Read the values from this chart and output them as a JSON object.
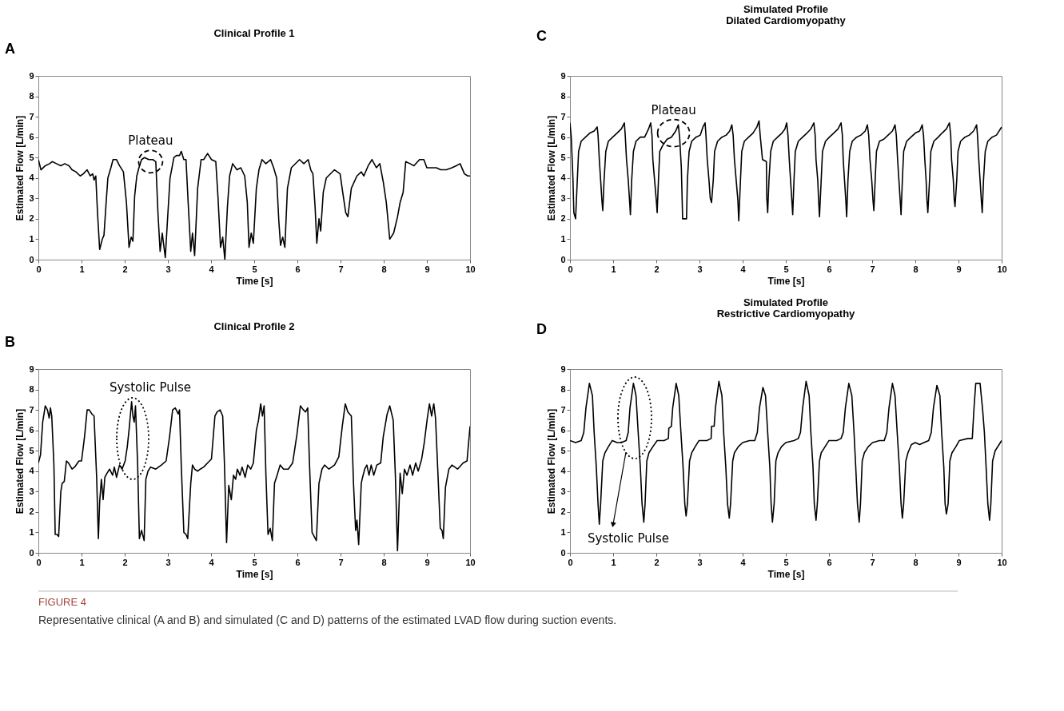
{
  "chart_data": [
    {
      "type": "line",
      "title": "Clinical Profile 1",
      "xlabel": "Time [s]",
      "ylabel": "Estimated Flow [L/min]",
      "xlim": [
        0,
        10
      ],
      "ylim": [
        0,
        9
      ],
      "xticks": [
        0,
        1,
        2,
        3,
        4,
        5,
        6,
        7,
        8,
        9,
        10
      ],
      "yticks": [
        0,
        1,
        2,
        3,
        4,
        5,
        6,
        7,
        8,
        9
      ],
      "annotations": [
        "A",
        {
          "text": "Plateau",
          "x": 2.6,
          "y": 4.8
        }
      ],
      "x": [
        0,
        0.06,
        0.16,
        0.26,
        0.32,
        0.42,
        0.52,
        0.61,
        0.71,
        0.78,
        0.87,
        0.97,
        1.04,
        1.13,
        1.2,
        1.26,
        1.29,
        1.33,
        1.37,
        1.42,
        1.48,
        1.52,
        1.57,
        1.61,
        1.68,
        1.73,
        1.81,
        1.88,
        1.97,
        2.04,
        2.1,
        2.15,
        2.19,
        2.23,
        2.28,
        2.33,
        2.39,
        2.46,
        2.56,
        2.65,
        2.72,
        2.77,
        2.82,
        2.87,
        2.94,
        2.99,
        3.05,
        3.14,
        3.2,
        3.27,
        3.31,
        3.37,
        3.42,
        3.47,
        3.53,
        3.57,
        3.62,
        3.69,
        3.77,
        3.83,
        3.92,
        4.01,
        4.11,
        4.16,
        4.22,
        4.27,
        4.32,
        4.38,
        4.43,
        4.5,
        4.6,
        4.69,
        4.78,
        4.84,
        4.88,
        4.93,
        4.98,
        5.05,
        5.11,
        5.18,
        5.27,
        5.38,
        5.45,
        5.52,
        5.57,
        5.61,
        5.66,
        5.71,
        5.77,
        5.86,
        6.05,
        6.15,
        6.25,
        6.31,
        6.36,
        6.41,
        6.45,
        6.5,
        6.54,
        6.6,
        6.67,
        6.86,
        6.99,
        7.05,
        7.12,
        7.17,
        7.25,
        7.38,
        7.48,
        7.54,
        7.64,
        7.73,
        7.83,
        7.91,
        7.99,
        8.06,
        8.14,
        8.23,
        8.32,
        8.38,
        8.45,
        8.51,
        8.61,
        8.7,
        8.83,
        8.93,
        9.0,
        9.13,
        9.22,
        9.32,
        9.45,
        9.58,
        9.68,
        9.77,
        9.87,
        9.95,
        10
      ],
      "series": [
        {
          "color": "#000000",
          "values": [
            4.9,
            4.4,
            4.6,
            4.7,
            4.8,
            4.7,
            4.6,
            4.7,
            4.6,
            4.4,
            4.3,
            4.1,
            4.2,
            4.4,
            4.1,
            4.2,
            3.9,
            4.1,
            2.3,
            0.5,
            1.0,
            1.2,
            2.8,
            4.0,
            4.5,
            4.9,
            4.9,
            4.6,
            4.3,
            2.8,
            0.6,
            1.1,
            0.9,
            3.1,
            4.1,
            4.5,
            4.9,
            5.0,
            4.9,
            4.9,
            4.8,
            2.3,
            0.4,
            1.3,
            0.1,
            1.9,
            4.0,
            5.0,
            5.1,
            5.1,
            5.3,
            4.9,
            4.9,
            2.8,
            0.4,
            1.3,
            0.2,
            3.5,
            4.9,
            4.9,
            5.2,
            4.9,
            4.8,
            3.1,
            0.6,
            1.1,
            0.0,
            2.6,
            4.1,
            4.7,
            4.4,
            4.5,
            4.1,
            2.8,
            0.6,
            1.3,
            0.8,
            3.5,
            4.4,
            4.9,
            4.7,
            4.9,
            4.5,
            4.0,
            1.9,
            0.7,
            1.1,
            0.6,
            3.5,
            4.5,
            4.9,
            4.7,
            4.9,
            4.4,
            4.2,
            2.6,
            0.8,
            2.0,
            1.4,
            3.3,
            4.0,
            4.4,
            4.2,
            3.3,
            2.3,
            2.1,
            3.5,
            4.1,
            4.3,
            4.1,
            4.6,
            4.9,
            4.5,
            4.7,
            3.8,
            2.8,
            1.0,
            1.3,
            2.1,
            2.8,
            3.3,
            4.8,
            4.7,
            4.6,
            4.9,
            4.9,
            4.5,
            4.5,
            4.5,
            4.4,
            4.4,
            4.5,
            4.6,
            4.7,
            4.2,
            4.1,
            4.1
          ]
        }
      ]
    },
    {
      "type": "line",
      "title": "Simulated Profile",
      "subtitle": "Dilated Cardiomyopathy",
      "xlabel": "Time [s]",
      "ylabel": "Estimated Flow [L/min]",
      "xlim": [
        0,
        10
      ],
      "ylim": [
        0,
        9
      ],
      "xticks": [
        0,
        1,
        2,
        3,
        4,
        5,
        6,
        7,
        8,
        9,
        10
      ],
      "yticks": [
        0,
        1,
        2,
        3,
        4,
        5,
        6,
        7,
        8,
        9
      ],
      "annotations": [
        "C",
        {
          "text": "Plateau",
          "x": 2.4,
          "y": 6.2
        }
      ],
      "x": [
        0,
        0.03,
        0.07,
        0.09,
        0.13,
        0.17,
        0.2,
        0.26,
        0.36,
        0.46,
        0.56,
        0.63,
        0.65,
        0.68,
        0.71,
        0.74,
        0.76,
        0.79,
        0.83,
        0.89,
        0.99,
        1.09,
        1.19,
        1.26,
        1.28,
        1.31,
        1.35,
        1.38,
        1.4,
        1.43,
        1.47,
        1.53,
        1.63,
        1.73,
        1.82,
        1.87,
        1.9,
        1.92,
        1.96,
        2.0,
        2.02,
        2.05,
        2.08,
        2.15,
        2.25,
        2.35,
        2.45,
        2.51,
        2.54,
        2.58,
        2.61,
        2.7,
        2.72,
        2.76,
        2.82,
        2.92,
        3.02,
        3.08,
        3.13,
        3.15,
        3.18,
        3.22,
        3.25,
        3.28,
        3.32,
        3.35,
        3.42,
        3.52,
        3.62,
        3.7,
        3.75,
        3.78,
        3.81,
        3.85,
        3.89,
        3.91,
        3.95,
        3.98,
        4.04,
        4.14,
        4.24,
        4.33,
        4.38,
        4.41,
        4.46,
        4.55,
        4.56,
        4.58,
        4.61,
        4.65,
        4.71,
        4.81,
        4.91,
        4.98,
        5.02,
        5.05,
        5.08,
        5.11,
        5.14,
        5.16,
        5.19,
        5.22,
        5.29,
        5.39,
        5.49,
        5.58,
        5.65,
        5.68,
        5.7,
        5.74,
        5.76,
        5.78,
        5.82,
        5.85,
        5.92,
        6.01,
        6.11,
        6.21,
        6.28,
        6.31,
        6.33,
        6.36,
        6.39,
        6.41,
        6.44,
        6.48,
        6.54,
        6.64,
        6.74,
        6.84,
        6.89,
        6.92,
        6.95,
        6.99,
        7.02,
        7.04,
        7.07,
        7.1,
        7.17,
        7.27,
        7.37,
        7.47,
        7.53,
        7.56,
        7.59,
        7.62,
        7.65,
        7.67,
        7.7,
        7.73,
        7.8,
        7.9,
        8.0,
        8.1,
        8.16,
        8.19,
        8.22,
        8.25,
        8.27,
        8.29,
        8.33,
        8.36,
        8.43,
        8.53,
        8.62,
        8.72,
        8.79,
        8.82,
        8.84,
        8.88,
        8.9,
        8.92,
        8.96,
        8.99,
        9.05,
        9.15,
        9.25,
        9.35,
        9.42,
        9.44,
        9.47,
        9.5,
        9.53,
        9.55,
        9.58,
        9.62,
        9.68,
        9.78,
        9.88,
        10
      ],
      "series": [
        {
          "color": "#000000",
          "values": [
            6.7,
            6.0,
            3.9,
            2.3,
            2.0,
            3.9,
            5.3,
            5.8,
            6.0,
            6.2,
            6.3,
            6.5,
            6.1,
            4.9,
            3.9,
            2.9,
            2.4,
            3.9,
            5.3,
            5.8,
            6.0,
            6.2,
            6.4,
            6.7,
            6.1,
            4.9,
            3.9,
            2.9,
            2.2,
            3.9,
            5.3,
            5.8,
            6.0,
            6.0,
            6.4,
            6.7,
            6.1,
            4.9,
            3.9,
            2.9,
            2.3,
            3.9,
            5.3,
            5.6,
            5.9,
            6.0,
            6.3,
            6.6,
            6.0,
            4.5,
            2.0,
            2.0,
            3.9,
            5.3,
            5.8,
            6.0,
            6.1,
            6.5,
            6.7,
            6.1,
            4.9,
            3.9,
            3.0,
            2.8,
            3.9,
            5.3,
            5.8,
            6.0,
            6.1,
            6.3,
            6.6,
            6.1,
            4.9,
            3.9,
            2.9,
            1.9,
            3.9,
            5.3,
            5.8,
            6.0,
            6.2,
            6.5,
            6.8,
            6.0,
            4.9,
            4.8,
            3.0,
            2.3,
            3.9,
            5.3,
            5.8,
            6.0,
            6.2,
            6.4,
            6.7,
            6.1,
            4.9,
            3.9,
            2.9,
            2.2,
            3.9,
            5.3,
            5.8,
            6.0,
            6.2,
            6.4,
            6.7,
            6.1,
            4.9,
            3.9,
            2.9,
            2.1,
            3.9,
            5.3,
            5.8,
            6.0,
            6.2,
            6.4,
            6.7,
            6.1,
            4.9,
            3.9,
            2.9,
            2.1,
            3.9,
            5.3,
            5.8,
            6.0,
            6.1,
            6.3,
            6.6,
            6.1,
            4.9,
            3.9,
            2.9,
            2.4,
            3.9,
            5.3,
            5.8,
            5.9,
            6.1,
            6.3,
            6.6,
            6.1,
            4.9,
            3.9,
            2.9,
            2.2,
            3.9,
            5.3,
            5.8,
            6.0,
            6.2,
            6.3,
            6.6,
            6.1,
            4.9,
            3.9,
            2.9,
            2.3,
            3.9,
            5.3,
            5.8,
            6.0,
            6.2,
            6.4,
            6.7,
            6.1,
            4.9,
            3.9,
            3.0,
            2.6,
            3.9,
            5.3,
            5.8,
            6.0,
            6.1,
            6.3,
            6.6,
            6.1,
            4.9,
            3.9,
            2.9,
            2.3,
            3.9,
            5.3,
            5.8,
            6.0,
            6.1,
            6.5
          ]
        }
      ]
    },
    {
      "type": "line",
      "title": "Clinical Profile 2",
      "xlabel": "Time [s]",
      "ylabel": "Estimated Flow [L/min]",
      "xlim": [
        0,
        10
      ],
      "ylim": [
        0,
        9
      ],
      "xticks": [
        0,
        1,
        2,
        3,
        4,
        5,
        6,
        7,
        8,
        9,
        10
      ],
      "yticks": [
        0,
        1,
        2,
        3,
        4,
        5,
        6,
        7,
        8,
        9
      ],
      "annotations": [
        "B",
        "Systolic Pulse"
      ],
      "x": [
        0,
        0.05,
        0.1,
        0.16,
        0.21,
        0.25,
        0.28,
        0.31,
        0.36,
        0.39,
        0.43,
        0.47,
        0.52,
        0.55,
        0.6,
        0.65,
        0.7,
        0.78,
        0.84,
        0.94,
        1.0,
        1.07,
        1.13,
        1.18,
        1.24,
        1.29,
        1.35,
        1.39,
        1.42,
        1.46,
        1.5,
        1.54,
        1.59,
        1.65,
        1.72,
        1.76,
        1.81,
        1.88,
        1.94,
        2.01,
        2.06,
        2.1,
        2.16,
        2.19,
        2.22,
        2.25,
        2.3,
        2.34,
        2.39,
        2.45,
        2.49,
        2.54,
        2.6,
        2.72,
        2.85,
        2.96,
        3.04,
        3.11,
        3.17,
        3.24,
        3.27,
        3.31,
        3.37,
        3.42,
        3.46,
        3.53,
        3.57,
        3.62,
        3.69,
        3.75,
        3.83,
        3.92,
        4.01,
        4.09,
        4.14,
        4.21,
        4.27,
        4.31,
        4.36,
        4.41,
        4.47,
        4.52,
        4.57,
        4.61,
        4.67,
        4.72,
        4.79,
        4.85,
        4.92,
        4.98,
        5.05,
        5.1,
        5.15,
        5.19,
        5.23,
        5.27,
        5.32,
        5.37,
        5.42,
        5.47,
        5.53,
        5.6,
        5.68,
        5.79,
        5.89,
        5.99,
        6.07,
        6.14,
        6.19,
        6.24,
        6.28,
        6.34,
        6.39,
        6.44,
        6.5,
        6.57,
        6.63,
        6.73,
        6.86,
        6.96,
        7.04,
        7.11,
        7.17,
        7.25,
        7.3,
        7.35,
        7.38,
        7.42,
        7.48,
        7.51,
        7.56,
        7.61,
        7.66,
        7.71,
        7.77,
        7.84,
        7.93,
        7.99,
        8.08,
        8.14,
        8.22,
        8.27,
        8.32,
        8.38,
        8.43,
        8.48,
        8.54,
        8.61,
        8.67,
        8.74,
        8.8,
        8.88,
        8.94,
        9.01,
        9.06,
        9.11,
        9.16,
        9.2,
        9.26,
        9.31,
        9.35,
        9.38,
        9.43,
        9.51,
        9.58,
        9.71,
        9.84,
        9.93,
        10
      ],
      "series": [
        {
          "color": "#000000",
          "values": [
            4.4,
            4.8,
            6.4,
            7.2,
            7.0,
            6.6,
            7.1,
            6.7,
            4.3,
            0.9,
            0.9,
            0.8,
            3.0,
            3.4,
            3.5,
            4.5,
            4.4,
            4.1,
            4.2,
            4.5,
            4.5,
            5.7,
            7.0,
            7.0,
            6.8,
            6.7,
            3.7,
            0.7,
            2.5,
            3.6,
            2.6,
            3.7,
            3.9,
            4.1,
            3.8,
            4.2,
            3.7,
            4.3,
            4.1,
            4.5,
            5.2,
            6.0,
            7.4,
            6.7,
            6.4,
            7.2,
            4.3,
            0.7,
            1.1,
            0.6,
            3.6,
            4.0,
            4.2,
            4.1,
            4.3,
            4.5,
            5.7,
            7.0,
            7.1,
            6.8,
            7.0,
            4.3,
            1.0,
            0.9,
            0.7,
            3.4,
            4.3,
            4.1,
            4.0,
            4.1,
            4.2,
            4.4,
            4.6,
            6.7,
            6.9,
            7.0,
            6.7,
            4.4,
            0.5,
            3.3,
            2.6,
            3.8,
            3.6,
            4.1,
            3.8,
            4.2,
            3.7,
            4.3,
            4.1,
            4.4,
            6.0,
            6.5,
            7.3,
            6.7,
            7.2,
            3.9,
            0.9,
            1.2,
            0.6,
            3.4,
            3.8,
            4.3,
            4.1,
            4.1,
            4.4,
            5.8,
            7.2,
            7.0,
            6.9,
            7.1,
            4.4,
            1.0,
            0.8,
            0.6,
            3.4,
            4.1,
            4.3,
            4.1,
            4.3,
            4.7,
            6.2,
            7.3,
            6.9,
            6.7,
            3.4,
            1.1,
            1.6,
            0.4,
            3.4,
            3.7,
            4.1,
            4.3,
            3.8,
            4.3,
            3.8,
            4.3,
            4.4,
            5.7,
            6.8,
            7.2,
            6.5,
            3.8,
            0.1,
            3.9,
            2.9,
            4.1,
            3.8,
            4.3,
            3.8,
            4.4,
            4.0,
            4.6,
            5.4,
            6.6,
            7.3,
            6.7,
            7.3,
            6.6,
            3.7,
            1.2,
            1.1,
            0.7,
            3.2,
            4.1,
            4.3,
            4.1,
            4.4,
            4.5,
            6.2
          ]
        }
      ]
    },
    {
      "type": "line",
      "title": "Simulated Profile",
      "subtitle": "Restrictive Cardiomyopathy",
      "xlabel": "Time [s]",
      "ylabel": "Estimated Flow [L/min]",
      "xlim": [
        0,
        10
      ],
      "ylim": [
        0,
        9
      ],
      "xticks": [
        0,
        1,
        2,
        3,
        4,
        5,
        6,
        7,
        8,
        9,
        10
      ],
      "yticks": [
        0,
        1,
        2,
        3,
        4,
        5,
        6,
        7,
        8,
        9
      ],
      "annotations": [
        "D",
        "Systolic Pulse"
      ],
      "x": [
        0,
        0.13,
        0.26,
        0.32,
        0.37,
        0.45,
        0.52,
        0.56,
        0.61,
        0.65,
        0.68,
        0.71,
        0.76,
        0.81,
        0.89,
        0.98,
        1.09,
        1.19,
        1.3,
        1.35,
        1.39,
        1.47,
        1.53,
        1.58,
        1.63,
        1.67,
        1.71,
        1.74,
        1.78,
        1.83,
        1.92,
        2.02,
        2.18,
        2.28,
        2.29,
        2.35,
        2.38,
        2.46,
        2.52,
        2.57,
        2.62,
        2.66,
        2.69,
        2.72,
        2.77,
        2.82,
        2.9,
        2.99,
        3.17,
        3.27,
        3.28,
        3.34,
        3.37,
        3.45,
        3.52,
        3.56,
        3.61,
        3.65,
        3.69,
        3.72,
        3.77,
        3.81,
        3.9,
        4.0,
        4.16,
        4.28,
        4.34,
        4.39,
        4.47,
        4.53,
        4.58,
        4.63,
        4.66,
        4.69,
        4.73,
        4.77,
        4.82,
        4.9,
        5.0,
        5.19,
        5.29,
        5.34,
        5.39,
        5.47,
        5.54,
        5.58,
        5.63,
        5.66,
        5.7,
        5.73,
        5.78,
        5.82,
        5.91,
        6.0,
        6.18,
        6.28,
        6.33,
        6.38,
        6.46,
        6.53,
        6.58,
        6.62,
        6.66,
        6.7,
        6.73,
        6.77,
        6.82,
        6.91,
        7.01,
        7.17,
        7.28,
        7.34,
        7.39,
        7.47,
        7.53,
        7.58,
        7.63,
        7.67,
        7.7,
        7.73,
        7.78,
        7.83,
        7.91,
        8.0,
        8.1,
        8.2,
        8.31,
        8.37,
        8.42,
        8.5,
        8.57,
        8.61,
        8.66,
        8.69,
        8.72,
        8.76,
        8.8,
        8.85,
        8.94,
        9.02,
        9.22,
        9.32,
        9.36,
        9.4,
        9.5,
        9.56,
        9.6,
        9.64,
        9.68,
        9.72,
        9.75,
        9.79,
        9.85,
        10
      ],
      "series": [
        {
          "color": "#000000",
          "values": [
            5.5,
            5.4,
            5.5,
            5.9,
            7.1,
            8.3,
            7.7,
            5.9,
            4.2,
            2.4,
            1.4,
            2.4,
            4.5,
            4.9,
            5.2,
            5.5,
            5.4,
            5.4,
            5.5,
            5.9,
            7.1,
            8.3,
            7.7,
            5.9,
            4.2,
            2.4,
            1.5,
            2.4,
            4.5,
            4.9,
            5.2,
            5.5,
            5.5,
            5.6,
            6.1,
            6.2,
            7.1,
            8.3,
            7.7,
            5.9,
            4.2,
            2.4,
            1.8,
            2.4,
            4.5,
            4.9,
            5.2,
            5.5,
            5.5,
            5.6,
            6.2,
            6.2,
            7.1,
            8.4,
            7.7,
            5.9,
            4.2,
            2.4,
            1.7,
            2.4,
            4.5,
            4.9,
            5.2,
            5.4,
            5.5,
            5.5,
            5.9,
            7.1,
            8.1,
            7.7,
            5.9,
            4.2,
            2.4,
            1.5,
            2.4,
            4.5,
            4.9,
            5.2,
            5.4,
            5.5,
            5.6,
            5.9,
            7.1,
            8.4,
            7.7,
            5.9,
            4.2,
            2.4,
            1.6,
            2.4,
            4.5,
            4.9,
            5.2,
            5.5,
            5.5,
            5.6,
            5.9,
            7.1,
            8.3,
            7.7,
            5.9,
            4.2,
            2.4,
            1.5,
            2.4,
            4.5,
            4.9,
            5.2,
            5.4,
            5.5,
            5.5,
            5.9,
            7.1,
            8.3,
            7.7,
            5.9,
            4.2,
            2.4,
            1.7,
            2.4,
            4.5,
            4.9,
            5.3,
            5.4,
            5.3,
            5.4,
            5.5,
            5.9,
            7.1,
            8.2,
            7.7,
            5.9,
            4.2,
            2.4,
            1.9,
            2.4,
            4.5,
            4.9,
            5.2,
            5.5,
            5.6,
            5.6,
            7.1,
            8.3,
            8.3,
            7.0,
            5.9,
            4.2,
            2.4,
            1.6,
            2.4,
            4.5,
            5.0,
            5.5
          ]
        }
      ]
    },
    {
      "type": "other",
      "annotations": [
        "FIGURE 4",
        "Representative clinical (A and B) and simulated (C and D) patterns of the estimated LVAD flow during suction events."
      ]
    }
  ]
}
